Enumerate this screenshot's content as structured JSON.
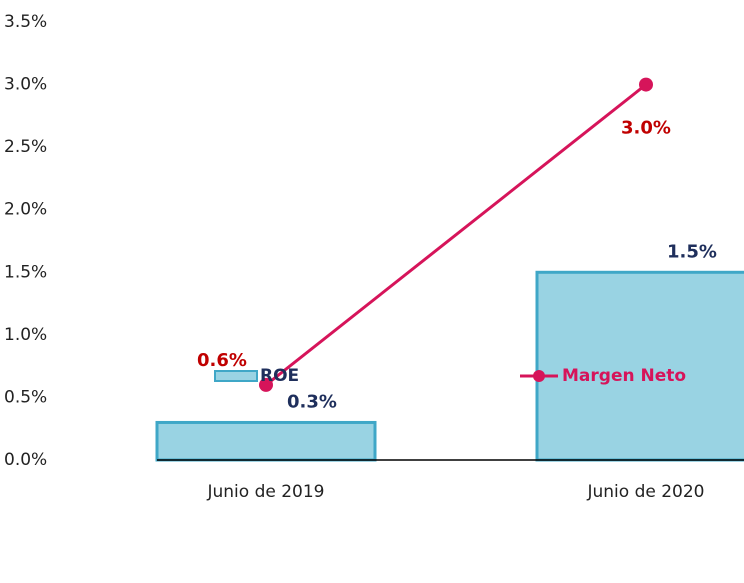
{
  "chart_data": {
    "type": "bar",
    "categories": [
      "Junio de 2019",
      "Junio de 2020"
    ],
    "series": [
      {
        "name": "ROE",
        "type": "bar",
        "color": "#99d3e3",
        "values": [
          0.3,
          1.5
        ],
        "value_labels": [
          "0.3%",
          "1.5%"
        ]
      },
      {
        "name": "Margen Neto",
        "type": "line",
        "color": "#d6145a",
        "values": [
          0.6,
          3.0
        ],
        "value_labels": [
          "0.6%",
          "3.0%"
        ]
      }
    ],
    "ylim": [
      0,
      3.5
    ],
    "yticks": [
      {
        "value": 0,
        "label": "0.0%"
      },
      {
        "value": 0.5,
        "label": "0.5%"
      },
      {
        "value": 1,
        "label": "1.0%"
      },
      {
        "value": 1.5,
        "label": "1.5%"
      },
      {
        "value": 2,
        "label": "2.0%"
      },
      {
        "value": 2.5,
        "label": "2.5%"
      },
      {
        "value": 3,
        "label": "3.0%"
      },
      {
        "value": 3.5,
        "label": "3.5%"
      }
    ],
    "grid": false,
    "legend": "bottom"
  }
}
